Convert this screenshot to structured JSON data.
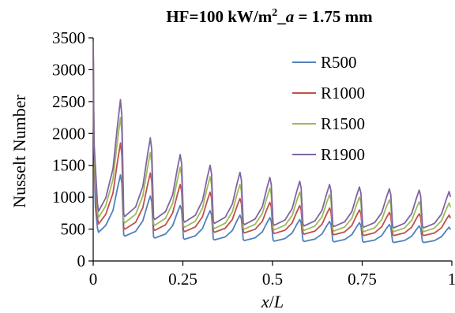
{
  "chart_data": {
    "type": "line",
    "title_parts": [
      "HF=100 kW/m",
      "2",
      "_",
      "a",
      " = 1.75 mm"
    ],
    "xlabel_parts": [
      "x",
      "/",
      "L"
    ],
    "ylabel": "Nusselt Number",
    "xlim": [
      0,
      1
    ],
    "ylim": [
      0,
      3500
    ],
    "x_ticks": [
      "0",
      "0.25",
      "0.5",
      "0.75",
      "1"
    ],
    "y_ticks": [
      "0",
      "500",
      "1000",
      "1500",
      "2000",
      "2500",
      "3000",
      "3500"
    ],
    "grid": false,
    "legend_position": "top-right",
    "period": 0.0833,
    "series": [
      {
        "name": "R500",
        "color": "#4f81bd",
        "start_peak": 3450,
        "peaks": [
          1350,
          1020,
          870,
          790,
          720,
          680,
          650,
          620,
          600,
          570,
          550,
          530
        ],
        "troughs": [
          450,
          390,
          360,
          340,
          330,
          320,
          310,
          305,
          300,
          295,
          290,
          290
        ]
      },
      {
        "name": "R1000",
        "color": "#c0504d",
        "start_peak": 3450,
        "peaks": [
          1850,
          1380,
          1200,
          1080,
          980,
          920,
          870,
          830,
          800,
          760,
          740,
          720
        ],
        "troughs": [
          580,
          500,
          480,
          460,
          450,
          440,
          430,
          420,
          410,
          400,
          400,
          400
        ]
      },
      {
        "name": "R1500",
        "color": "#9bbb59",
        "start_peak": 3450,
        "peaks": [
          2250,
          1700,
          1470,
          1320,
          1200,
          1140,
          1080,
          1040,
          1000,
          960,
          930,
          910
        ],
        "troughs": [
          680,
          600,
          560,
          530,
          510,
          500,
          490,
          480,
          470,
          460,
          460,
          460
        ]
      },
      {
        "name": "R1900",
        "color": "#8064a2",
        "start_peak": 3450,
        "peaks": [
          2530,
          1930,
          1670,
          1500,
          1390,
          1310,
          1250,
          1200,
          1160,
          1130,
          1110,
          1090
        ],
        "troughs": [
          780,
          700,
          650,
          610,
          590,
          570,
          560,
          550,
          540,
          530,
          520,
          520
        ]
      }
    ]
  }
}
